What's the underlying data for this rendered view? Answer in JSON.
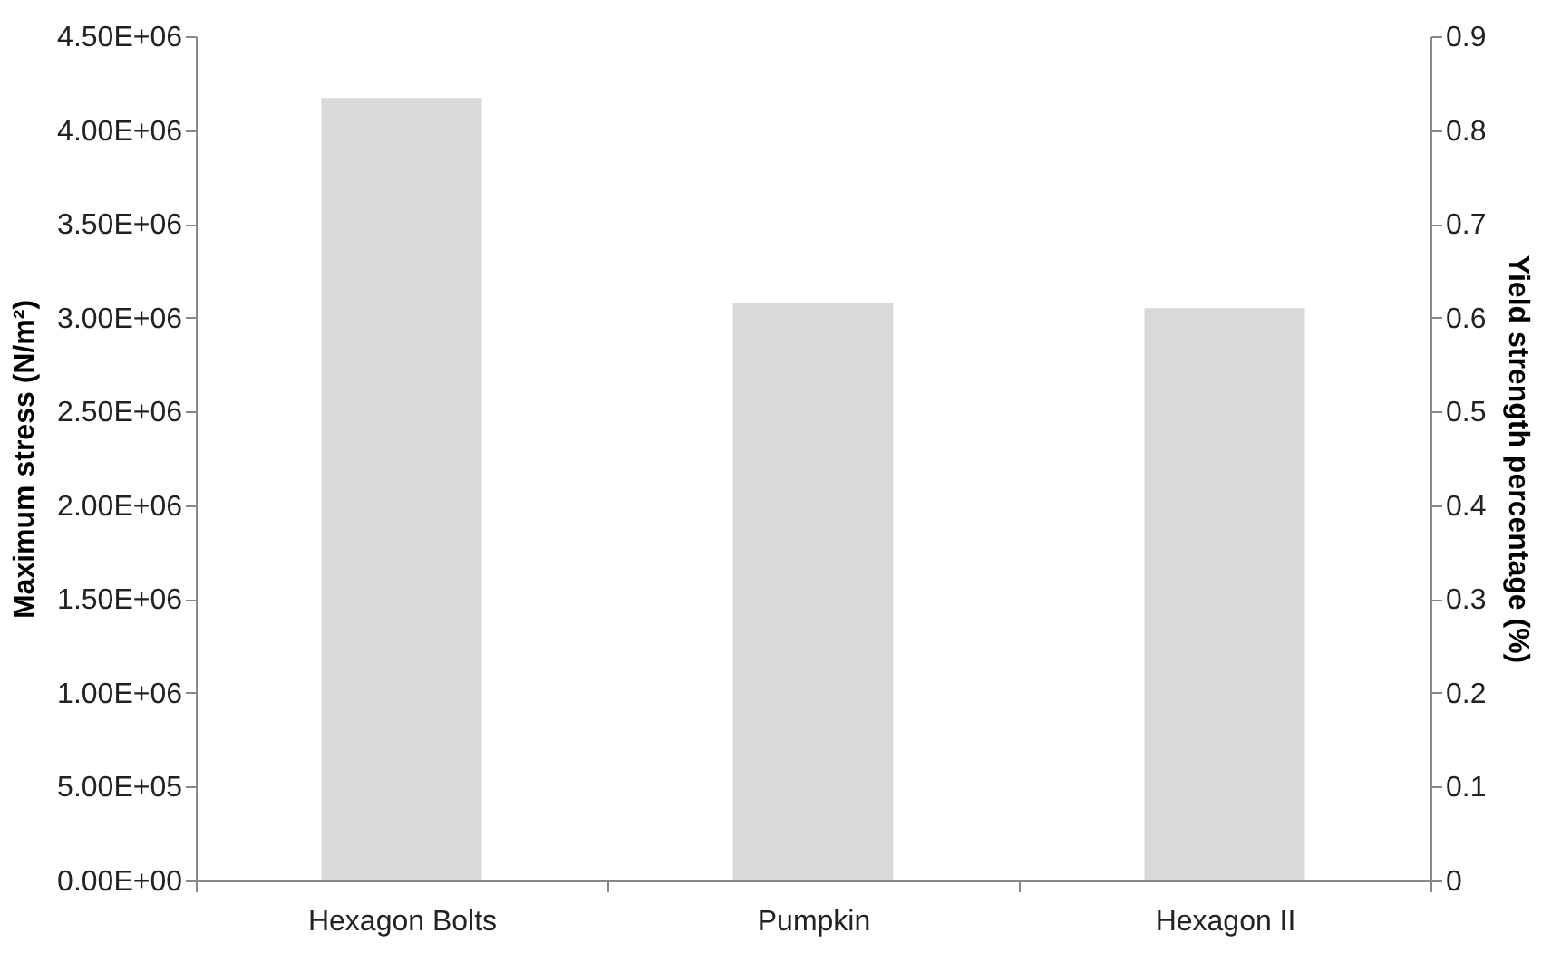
{
  "chart_data": {
    "type": "bar",
    "categories": [
      "Hexagon Bolts",
      "Pumpkin",
      "Hexagon II"
    ],
    "values": [
      4170000,
      3080000,
      3050000
    ],
    "color": "#d9d9d9",
    "ylabel": "Maximum stress (N/m²)",
    "y2label": "Yield strength percentage (%)",
    "ylim": [
      0,
      4500000
    ],
    "yticks": [
      {
        "value": 0,
        "label": "0.00E+00"
      },
      {
        "value": 500000,
        "label": "5.00E+05"
      },
      {
        "value": 1000000,
        "label": "1.00E+06"
      },
      {
        "value": 1500000,
        "label": "1.50E+06"
      },
      {
        "value": 2000000,
        "label": "2.00E+06"
      },
      {
        "value": 2500000,
        "label": "2.50E+06"
      },
      {
        "value": 3000000,
        "label": "3.00E+06"
      },
      {
        "value": 3500000,
        "label": "3.50E+06"
      },
      {
        "value": 4000000,
        "label": "4.00E+06"
      },
      {
        "value": 4500000,
        "label": "4.50E+06"
      }
    ],
    "y2lim": [
      0,
      0.9
    ],
    "y2ticks": [
      0,
      0.1,
      0.2,
      0.3,
      0.4,
      0.5,
      0.6,
      0.7,
      0.8,
      0.9
    ],
    "grid": false
  }
}
